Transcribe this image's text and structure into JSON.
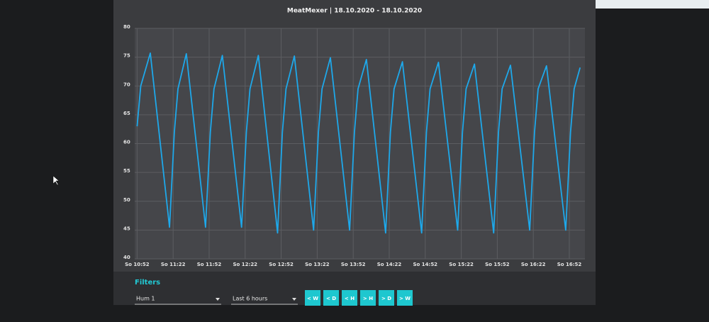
{
  "chart_data": {
    "type": "line",
    "title": "MeatMexer | 18.10.2020 - 18.10.2020",
    "color": "#1ea8ea",
    "x": [
      "So 10:52",
      "So 10:55",
      "So 11:03",
      "So 11:19",
      "So 11:23",
      "So 11:26",
      "So 11:33",
      "So 11:49",
      "So 11:53",
      "So 11:56",
      "So 12:03",
      "So 12:19",
      "So 12:23",
      "So 12:26",
      "So 12:33",
      "So 12:49",
      "So 12:53",
      "So 12:56",
      "So 13:03",
      "So 13:19",
      "So 13:23",
      "So 13:26",
      "So 13:33",
      "So 13:49",
      "So 13:53",
      "So 13:56",
      "So 14:03",
      "So 14:19",
      "So 14:23",
      "So 14:26",
      "So 14:33",
      "So 14:49",
      "So 14:53",
      "So 14:56",
      "So 15:03",
      "So 15:19",
      "So 15:23",
      "So 15:26",
      "So 15:33",
      "So 15:49",
      "So 15:53",
      "So 15:56",
      "So 16:03",
      "So 16:19",
      "So 16:23",
      "So 16:26",
      "So 16:33",
      "So 16:49",
      "So 16:53",
      "So 16:56",
      "So 17:01"
    ],
    "values": [
      63,
      70,
      75.7,
      45.5,
      62,
      69.5,
      75.6,
      45.5,
      62,
      69.5,
      75.3,
      45.5,
      62,
      69.5,
      75.3,
      44.5,
      62,
      69.5,
      75.2,
      45,
      62,
      69.5,
      74.9,
      45,
      62,
      69.5,
      74.6,
      44.5,
      62,
      69.5,
      74.2,
      44.5,
      62,
      69.5,
      74.1,
      45,
      62,
      69.5,
      73.8,
      44.5,
      62,
      69.5,
      73.6,
      45,
      62,
      69.5,
      73.5,
      45,
      62,
      69.5,
      73.2
    ],
    "xlim": [
      "So 10:50",
      "So 17:05"
    ],
    "xticks": [
      "So 10:52",
      "So 11:22",
      "So 11:52",
      "So 12:22",
      "So 12:52",
      "So 13:22",
      "So 13:52",
      "So 14:22",
      "So 14:52",
      "So 15:22",
      "So 15:52",
      "So 16:22",
      "So 16:52"
    ],
    "ylim": [
      40,
      80
    ],
    "yticks": [
      40,
      45,
      50,
      55,
      60,
      65,
      70,
      75,
      80
    ],
    "grid": true
  },
  "filters": {
    "title": "Filters",
    "sensor": "Hum 1",
    "range": "Last 6 hours",
    "buttons": [
      "< W",
      "< D",
      "< H",
      "> H",
      "> D",
      "> W"
    ]
  }
}
